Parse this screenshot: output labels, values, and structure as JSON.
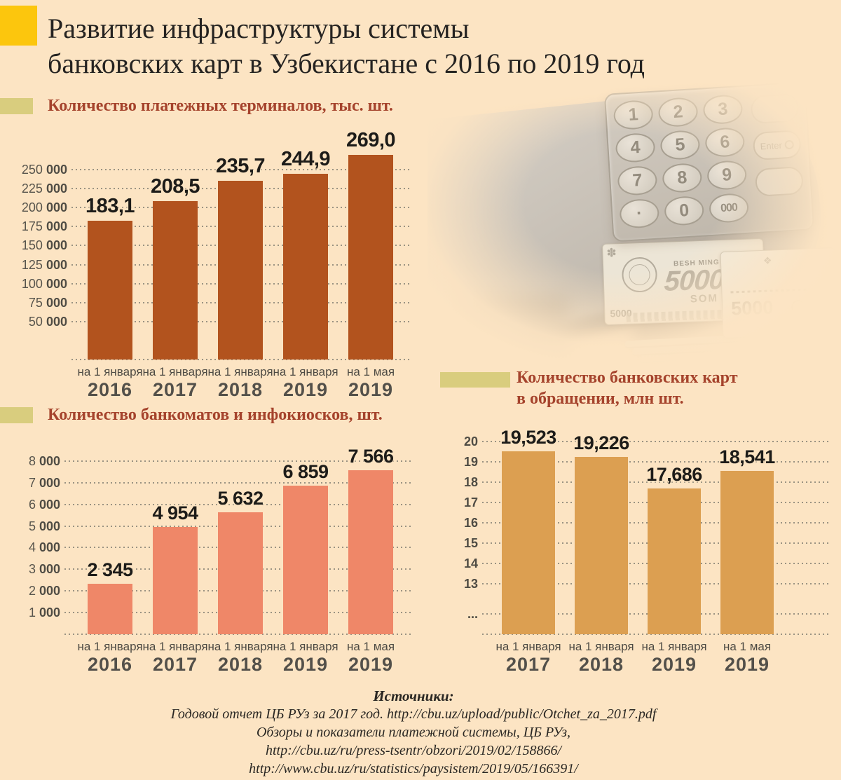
{
  "page": {
    "background": "#fce4c3",
    "accent_yellow": "#fcc60d",
    "accent_khaki": "#d9cd7e",
    "title_red": "#a5432c"
  },
  "header": {
    "title_line1": "Развитие инфраструктуры системы",
    "title_line2": "банковских карт в Узбекистане с 2016 по 2019 год"
  },
  "photo": {
    "keypad_keys": [
      "1",
      "2",
      "3",
      "4",
      "5",
      "6",
      "7",
      "8",
      "9",
      "·",
      "0",
      "000"
    ],
    "enter_label": "Enter",
    "banknote": {
      "value": "5000",
      "label": "BESH MING",
      "currency": "SOM",
      "ornament": "✽",
      "ornament2": "❖"
    }
  },
  "chart_data": [
    {
      "id": "terminals",
      "type": "bar",
      "title": "Количество платежных терминалов, тыс. шт.",
      "unit": "тыс. шт.",
      "categories": [
        {
          "when": "на 1 января",
          "year": "2016"
        },
        {
          "when": "на 1 января",
          "year": "2017"
        },
        {
          "when": "на 1 января",
          "year": "2018"
        },
        {
          "when": "на 1 января",
          "year": "2019"
        },
        {
          "when": "на 1 мая",
          "year": "2019"
        }
      ],
      "values": [
        183.1,
        208.5,
        235.7,
        244.9,
        269.0
      ],
      "value_labels": [
        "183,1",
        "208,5",
        "235,7",
        "244,9",
        "269,0"
      ],
      "axis": {
        "min": 0,
        "tick_values": [
          50000,
          75000,
          100000,
          125000,
          150000,
          175000,
          200000,
          225000,
          250000
        ],
        "tick_labels": [
          "50 000",
          "75 000",
          "100 000",
          "125 000",
          "150 000",
          "175 000",
          "200 000",
          "225 000",
          "250 000"
        ],
        "value_multiplier": 1000
      },
      "bar_color": "#b2531e",
      "grid": true,
      "legend": "none"
    },
    {
      "id": "atms",
      "type": "bar",
      "title": "Количество банкоматов и инфокиосков, шт.",
      "unit": "шт.",
      "categories": [
        {
          "when": "на 1 января",
          "year": "2016"
        },
        {
          "when": "на 1 января",
          "year": "2017"
        },
        {
          "when": "на 1 января",
          "year": "2018"
        },
        {
          "when": "на 1 января",
          "year": "2019"
        },
        {
          "when": "на 1 мая",
          "year": "2019"
        }
      ],
      "values": [
        2345,
        4954,
        5632,
        6859,
        7566
      ],
      "value_labels": [
        "2 345",
        "4 954",
        "5 632",
        "6 859",
        "7 566"
      ],
      "axis": {
        "min": 0,
        "tick_values": [
          1000,
          2000,
          3000,
          4000,
          5000,
          6000,
          7000,
          8000
        ],
        "tick_labels": [
          "1 000",
          "2 000",
          "3 000",
          "4 000",
          "5 000",
          "6 000",
          "7 000",
          "8 000"
        ],
        "value_multiplier": 1
      },
      "bar_color": "#ef8768",
      "grid": true,
      "legend": "none"
    },
    {
      "id": "cards",
      "type": "bar",
      "title": "Количество банковских карт в обращении, млн шт.",
      "title_line1": "Количество банковских карт",
      "title_line2": "в обращении, млн шт.",
      "unit": "млн шт.",
      "categories": [
        {
          "when": "на 1 января",
          "year": "2017"
        },
        {
          "when": "на 1 января",
          "year": "2018"
        },
        {
          "when": "на 1 января",
          "year": "2019"
        },
        {
          "when": "на 1 мая",
          "year": "2019"
        }
      ],
      "values": [
        19.523,
        19.226,
        17.686,
        18.541
      ],
      "value_labels": [
        "19,523",
        "19,226",
        "17,686",
        "18,541"
      ],
      "axis": {
        "broken": true,
        "break_label": "...",
        "tick_values": [
          20,
          19,
          18,
          17,
          16,
          15,
          14,
          13
        ],
        "tick_labels": [
          "20",
          "19",
          "18",
          "17",
          "16",
          "15",
          "14",
          "13"
        ],
        "value_multiplier": 1
      },
      "bar_color": "#dc9f51",
      "grid": true,
      "legend": "none"
    }
  ],
  "sources": {
    "heading": "Источники:",
    "lines": [
      "Годовой отчет ЦБ РУз за 2017 год.  http://cbu.uz/upload/public/Otchet_za_2017.pdf",
      "Обзоры и показатели платежной системы, ЦБ РУз,",
      "http://cbu.uz/ru/press-tsentr/obzori/2019/02/158866/",
      "http://www.cbu.uz/ru/statistics/paysistem/2019/05/166391/"
    ]
  }
}
